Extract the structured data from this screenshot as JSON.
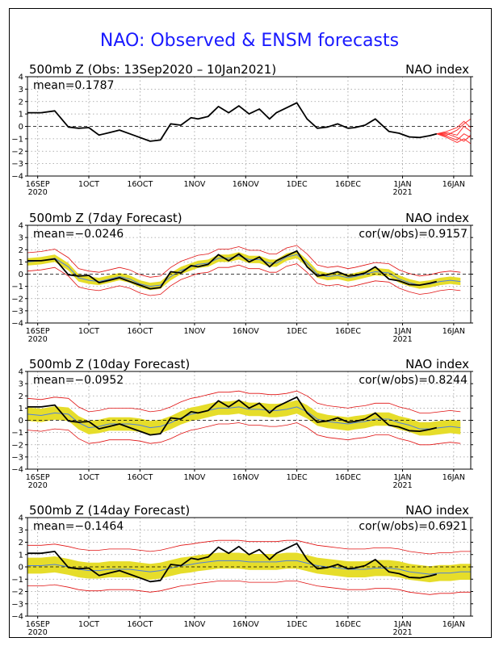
{
  "page_title": "NAO: Observed & ENSM forecasts",
  "colors": {
    "title": "#1a1aff",
    "observed": "#000000",
    "ens_mean": "#4f7fdc",
    "ens_spread": "#e6dd2a",
    "ens_range": "#e01010",
    "members": "#ff3030"
  },
  "x_ticks": [
    {
      "top": "16SEP",
      "bottom": "2020"
    },
    {
      "top": "1OCT",
      "bottom": ""
    },
    {
      "top": "16OCT",
      "bottom": ""
    },
    {
      "top": "1NOV",
      "bottom": ""
    },
    {
      "top": "16NOV",
      "bottom": ""
    },
    {
      "top": "1DEC",
      "bottom": ""
    },
    {
      "top": "16DEC",
      "bottom": ""
    },
    {
      "top": "1JAN",
      "bottom": "2021"
    },
    {
      "top": "16JAN",
      "bottom": ""
    }
  ],
  "chart_data": [
    {
      "type": "line",
      "title": "500mb Z (Obs: 13Sep2020 – 10Jan2021)",
      "index_label": "NAO index",
      "mean_label": "mean=0.1787",
      "cor_label": "",
      "ylim": [
        -4,
        4
      ],
      "yticks": [
        4,
        3,
        2,
        1,
        0,
        -1,
        -2,
        -3,
        -4
      ],
      "xlim": [
        0,
        130
      ],
      "observed": {
        "x": [
          0,
          4,
          8,
          12,
          15,
          18,
          21,
          24,
          27,
          30,
          33,
          36,
          39,
          42,
          45,
          48,
          50,
          53,
          56,
          59,
          62,
          65,
          68,
          71,
          73,
          76,
          79,
          82,
          85,
          88,
          91,
          94,
          96,
          99,
          102,
          106,
          109,
          112,
          115,
          118,
          120
        ],
        "y": [
          1.1,
          1.1,
          1.25,
          -0.05,
          -0.15,
          -0.1,
          -0.7,
          -0.5,
          -0.3,
          -0.6,
          -0.9,
          -1.2,
          -1.1,
          0.2,
          0.1,
          0.7,
          0.6,
          0.8,
          1.6,
          1.1,
          1.65,
          1.0,
          1.4,
          0.6,
          1.1,
          1.5,
          1.9,
          0.6,
          -0.15,
          -0.05,
          0.2,
          -0.15,
          -0.1,
          0.1,
          0.6,
          -0.4,
          -0.55,
          -0.85,
          -0.9,
          -0.75,
          -0.6
        ]
      },
      "forecast_members": [
        {
          "x": [
            120,
            123,
            126,
            128,
            130
          ],
          "y": [
            -0.6,
            -0.7,
            -0.3,
            0.2,
            0.6
          ]
        },
        {
          "x": [
            120,
            123,
            126,
            128,
            130
          ],
          "y": [
            -0.6,
            -0.4,
            -0.1,
            0.4,
            -0.1
          ]
        },
        {
          "x": [
            120,
            123,
            126,
            128,
            130
          ],
          "y": [
            -0.6,
            -0.8,
            -1.1,
            -0.6,
            -0.9
          ]
        },
        {
          "x": [
            120,
            123,
            126,
            128,
            130
          ],
          "y": [
            -0.6,
            -0.9,
            -1.3,
            -1.0,
            -1.4
          ]
        },
        {
          "x": [
            120,
            123,
            126,
            128,
            130
          ],
          "y": [
            -0.6,
            -0.5,
            -0.7,
            0.0,
            -0.4
          ]
        },
        {
          "x": [
            120,
            123,
            126,
            128,
            130
          ],
          "y": [
            -0.6,
            -0.6,
            -0.9,
            -1.2,
            -0.7
          ]
        }
      ]
    },
    {
      "type": "line",
      "title": "500mb Z (7day Forecast)",
      "index_label": "NAO index",
      "mean_label": "mean=−0.0246",
      "cor_label": "cor(w/obs)=0.9157",
      "ylim": [
        -4,
        4
      ],
      "yticks": [
        4,
        3,
        2,
        1,
        0,
        -1,
        -2,
        -3,
        -4
      ],
      "xlim": [
        0,
        130
      ],
      "observed": {
        "x": [
          0,
          4,
          8,
          12,
          15,
          18,
          21,
          24,
          27,
          30,
          33,
          36,
          39,
          42,
          45,
          48,
          50,
          53,
          56,
          59,
          62,
          65,
          68,
          71,
          73,
          76,
          79,
          82,
          85,
          88,
          91,
          94,
          96,
          99,
          102,
          106,
          109,
          112,
          115,
          118,
          120
        ],
        "y": [
          1.1,
          1.1,
          1.25,
          -0.05,
          -0.15,
          -0.1,
          -0.7,
          -0.5,
          -0.3,
          -0.6,
          -0.9,
          -1.2,
          -1.1,
          0.2,
          0.1,
          0.7,
          0.6,
          0.8,
          1.6,
          1.1,
          1.65,
          1.0,
          1.4,
          0.6,
          1.1,
          1.5,
          1.9,
          0.6,
          -0.15,
          -0.05,
          0.2,
          -0.15,
          -0.1,
          0.1,
          0.6,
          -0.4,
          -0.55,
          -0.85,
          -0.9,
          -0.75,
          -0.6
        ]
      },
      "ens_mean": {
        "x": [
          0,
          4,
          8,
          12,
          15,
          18,
          21,
          24,
          27,
          30,
          33,
          36,
          39,
          42,
          45,
          48,
          50,
          53,
          56,
          59,
          62,
          65,
          68,
          71,
          73,
          76,
          79,
          82,
          85,
          88,
          91,
          94,
          96,
          99,
          102,
          106,
          109,
          112,
          115,
          118,
          121,
          124,
          127
        ],
        "y": [
          1.0,
          1.1,
          1.3,
          0.6,
          -0.3,
          -0.5,
          -0.6,
          -0.4,
          -0.2,
          -0.4,
          -0.8,
          -1.0,
          -0.9,
          -0.2,
          0.3,
          0.6,
          0.8,
          0.9,
          1.3,
          1.3,
          1.5,
          1.2,
          1.2,
          0.9,
          0.9,
          1.4,
          1.6,
          0.9,
          0.0,
          -0.2,
          -0.1,
          -0.3,
          -0.2,
          0.0,
          0.2,
          0.1,
          -0.4,
          -0.7,
          -0.9,
          -0.8,
          -0.6,
          -0.5,
          -0.6
        ]
      },
      "spread": 0.3,
      "range": 0.75,
      "mean_end_x": 127
    },
    {
      "type": "line",
      "title": "500mb Z (10day Forecast)",
      "index_label": "NAO index",
      "mean_label": "mean=−0.0952",
      "cor_label": "cor(w/obs)=0.8244",
      "ylim": [
        -4,
        4
      ],
      "yticks": [
        4,
        3,
        2,
        1,
        0,
        -1,
        -2,
        -3,
        -4
      ],
      "xlim": [
        0,
        130
      ],
      "observed": {
        "x": [
          0,
          4,
          8,
          12,
          15,
          18,
          21,
          24,
          27,
          30,
          33,
          36,
          39,
          42,
          45,
          48,
          50,
          53,
          56,
          59,
          62,
          65,
          68,
          71,
          73,
          76,
          79,
          82,
          85,
          88,
          91,
          94,
          96,
          99,
          102,
          106,
          109,
          112,
          115,
          118,
          120
        ],
        "y": [
          1.1,
          1.1,
          1.25,
          -0.05,
          -0.15,
          -0.1,
          -0.7,
          -0.5,
          -0.3,
          -0.6,
          -0.9,
          -1.2,
          -1.1,
          0.2,
          0.1,
          0.7,
          0.6,
          0.8,
          1.6,
          1.1,
          1.65,
          1.0,
          1.4,
          0.6,
          1.1,
          1.5,
          1.9,
          0.6,
          -0.15,
          -0.05,
          0.2,
          -0.15,
          -0.1,
          0.1,
          0.6,
          -0.4,
          -0.55,
          -0.85,
          -0.9,
          -0.75,
          -0.6
        ]
      },
      "ens_mean": {
        "x": [
          0,
          4,
          8,
          12,
          15,
          18,
          21,
          24,
          27,
          30,
          33,
          36,
          39,
          42,
          45,
          48,
          50,
          53,
          56,
          59,
          62,
          65,
          68,
          71,
          73,
          76,
          79,
          82,
          85,
          88,
          91,
          94,
          96,
          99,
          102,
          106,
          109,
          112,
          115,
          118,
          121,
          124,
          127
        ],
        "y": [
          0.5,
          0.4,
          0.6,
          0.5,
          -0.2,
          -0.6,
          -0.5,
          -0.3,
          -0.3,
          -0.3,
          -0.4,
          -0.6,
          -0.5,
          -0.2,
          0.2,
          0.5,
          0.6,
          0.8,
          1.0,
          1.0,
          1.1,
          0.9,
          0.9,
          0.8,
          0.8,
          0.9,
          1.1,
          0.7,
          0.1,
          -0.1,
          -0.2,
          -0.3,
          -0.2,
          -0.1,
          0.1,
          0.1,
          -0.2,
          -0.4,
          -0.7,
          -0.7,
          -0.6,
          -0.5,
          -0.6
        ]
      },
      "spread": 0.55,
      "range": 1.3,
      "mean_end_x": 127
    },
    {
      "type": "line",
      "title": "500mb Z (14day Forecast)",
      "index_label": "NAO index",
      "mean_label": "mean=−0.1464",
      "cor_label": "cor(w/obs)=0.6921",
      "ylim": [
        -4,
        4
      ],
      "yticks": [
        4,
        3,
        2,
        1,
        0,
        -1,
        -2,
        -3,
        -4
      ],
      "xlim": [
        0,
        130
      ],
      "observed": {
        "x": [
          0,
          4,
          8,
          12,
          15,
          18,
          21,
          24,
          27,
          30,
          33,
          36,
          39,
          42,
          45,
          48,
          50,
          53,
          56,
          59,
          62,
          65,
          68,
          71,
          73,
          76,
          79,
          82,
          85,
          88,
          91,
          94,
          96,
          99,
          102,
          106,
          109,
          112,
          115,
          118,
          120
        ],
        "y": [
          1.1,
          1.1,
          1.25,
          -0.05,
          -0.15,
          -0.1,
          -0.7,
          -0.5,
          -0.3,
          -0.6,
          -0.9,
          -1.2,
          -1.1,
          0.2,
          0.1,
          0.7,
          0.6,
          0.8,
          1.6,
          1.1,
          1.65,
          1.0,
          1.4,
          0.6,
          1.1,
          1.5,
          1.9,
          0.6,
          -0.15,
          -0.05,
          0.2,
          -0.15,
          -0.1,
          0.1,
          0.6,
          -0.4,
          -0.55,
          -0.85,
          -0.9,
          -0.75,
          -0.6
        ]
      },
      "ens_mean": {
        "x": [
          0,
          4,
          8,
          12,
          15,
          18,
          21,
          24,
          27,
          30,
          33,
          36,
          39,
          42,
          45,
          48,
          50,
          53,
          56,
          59,
          62,
          65,
          68,
          71,
          73,
          76,
          79,
          82,
          85,
          88,
          91,
          94,
          96,
          99,
          102,
          106,
          109,
          112,
          115,
          118,
          121,
          124,
          127,
          130
        ],
        "y": [
          0.1,
          0.1,
          0.2,
          0.0,
          -0.2,
          -0.3,
          -0.3,
          -0.2,
          -0.2,
          -0.2,
          -0.3,
          -0.4,
          -0.3,
          -0.1,
          0.1,
          0.2,
          0.3,
          0.4,
          0.5,
          0.5,
          0.5,
          0.4,
          0.4,
          0.4,
          0.4,
          0.5,
          0.5,
          0.3,
          0.1,
          0.0,
          -0.1,
          -0.2,
          -0.2,
          -0.2,
          -0.1,
          -0.1,
          -0.2,
          -0.4,
          -0.5,
          -0.6,
          -0.5,
          -0.5,
          -0.4,
          -0.4
        ]
      },
      "spread": 0.65,
      "range": 1.65,
      "mean_end_x": 130
    }
  ]
}
